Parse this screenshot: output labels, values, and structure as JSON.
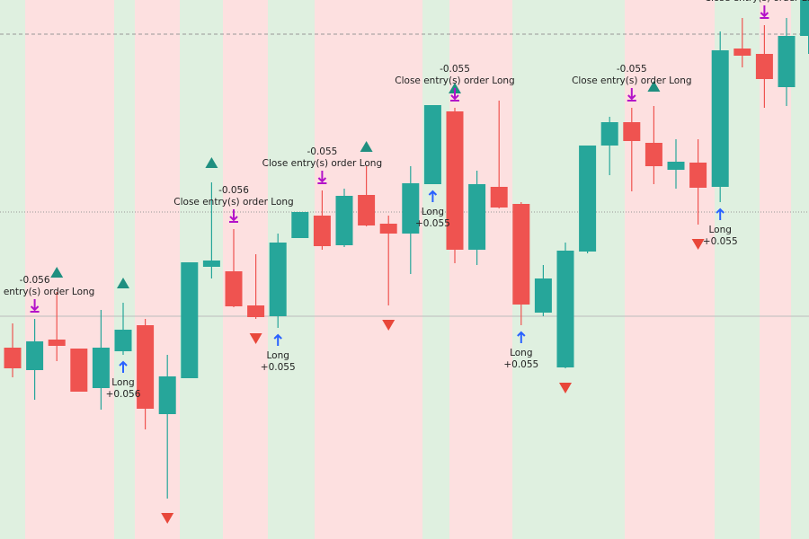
{
  "chart_data": {
    "type": "candlestick",
    "categories": [
      null,
      null,
      null,
      null,
      null,
      null,
      null,
      null,
      null,
      null,
      null,
      null,
      null,
      null,
      null,
      null,
      null,
      null,
      null,
      null,
      null,
      null,
      null,
      null,
      null,
      null,
      null,
      null,
      null,
      null,
      null,
      null,
      null,
      null,
      null,
      null,
      null
    ],
    "open": [
      213,
      188,
      222,
      212,
      168,
      209,
      238,
      139,
      179,
      303,
      298,
      260,
      248,
      335,
      360,
      327,
      383,
      351,
      340,
      395,
      476,
      322,
      392,
      373,
      252,
      191,
      320,
      438,
      464,
      441,
      411,
      419,
      392,
      546,
      540,
      503,
      560
    ],
    "high": [
      240,
      245,
      275,
      212,
      255,
      263,
      245,
      205,
      308,
      397,
      345,
      317,
      340,
      364,
      388,
      390,
      415,
      360,
      415,
      483,
      480,
      410,
      488,
      375,
      305,
      330,
      438,
      470,
      480,
      482,
      445,
      445,
      565,
      580,
      572,
      580,
      600
    ],
    "low": [
      180,
      155,
      198,
      164,
      144,
      205,
      122,
      45,
      179,
      290,
      258,
      245,
      235,
      335,
      322,
      325,
      348,
      260,
      295,
      395,
      307,
      305,
      368,
      238,
      248,
      190,
      318,
      405,
      387,
      395,
      390,
      350,
      375,
      525,
      480,
      482,
      540
    ],
    "close": [
      190,
      220,
      215,
      164,
      213,
      233,
      145,
      181,
      308,
      310,
      259,
      247,
      330,
      364,
      326,
      382,
      349,
      340,
      396,
      483,
      322,
      395,
      369,
      261,
      290,
      321,
      438,
      464,
      443,
      415,
      420,
      391,
      544,
      538,
      512,
      560,
      600
    ],
    "up_color": "#26a69a",
    "down_color": "#ef5350",
    "ylim": [
      0,
      600
    ],
    "entries": [
      {
        "index": 5,
        "label": "Long",
        "result": "+0.056"
      },
      {
        "index": 12,
        "label": "Long",
        "result": "+0.055"
      },
      {
        "index": 19,
        "label": "Long",
        "result": "+0.055"
      },
      {
        "index": 23,
        "label": "Long",
        "result": "+0.055"
      },
      {
        "index": 32,
        "label": "Long",
        "result": "+0.055"
      }
    ],
    "exits": [
      {
        "index": 1,
        "result": "-0.056",
        "label": "Close entry(s) order Long"
      },
      {
        "index": 10,
        "result": "-0.056",
        "label": "Close entry(s) order Long"
      },
      {
        "index": 14,
        "result": "-0.055",
        "label": "Close entry(s) order Long"
      },
      {
        "index": 20,
        "result": "-0.055",
        "label": "Close entry(s) order Long"
      },
      {
        "index": 28,
        "result": "-0.055",
        "label": "Close entry(s) order Long"
      },
      {
        "index": 34,
        "label": "Close entry(s) order Long"
      }
    ],
    "up_signals": [
      2,
      5,
      9,
      16,
      20,
      29
    ],
    "down_signals": [
      7,
      11,
      17,
      25,
      31
    ]
  }
}
